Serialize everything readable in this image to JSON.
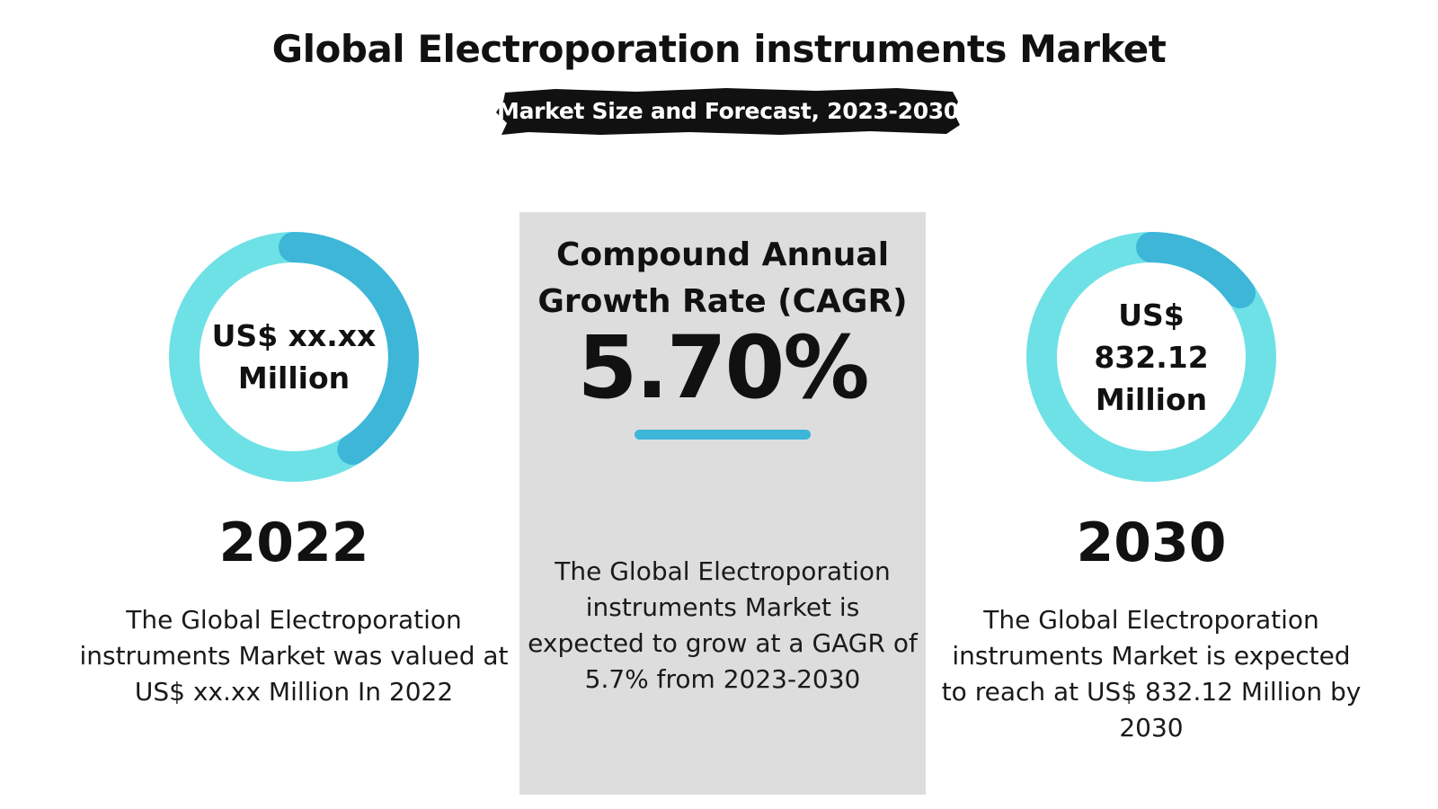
{
  "title": "Global Electroporation instruments Market",
  "subtitle": "Market Size and Forecast, 2023-2030",
  "left": {
    "ring_value": "US$ xx.xx Million",
    "year": "2022",
    "description": "The Global Electroporation instruments Market was valued at US$ xx.xx Million In 2022"
  },
  "center": {
    "cagr_label": "Compound Annual Growth Rate (CAGR)",
    "cagr_value": "5.70%",
    "description": "The Global Electroporation instruments Market is expected to grow at a GAGR of 5.7% from 2023-2030"
  },
  "right": {
    "ring_value": "US$ 832.12 Million",
    "year": "2030",
    "description": "The Global Electroporation instruments Market is expected to reach at US$ 832.12 Million by 2030"
  },
  "colors": {
    "ring_light": "#6ee1e6",
    "ring_accent": "#3db6d8",
    "panel": "#dddddd"
  }
}
